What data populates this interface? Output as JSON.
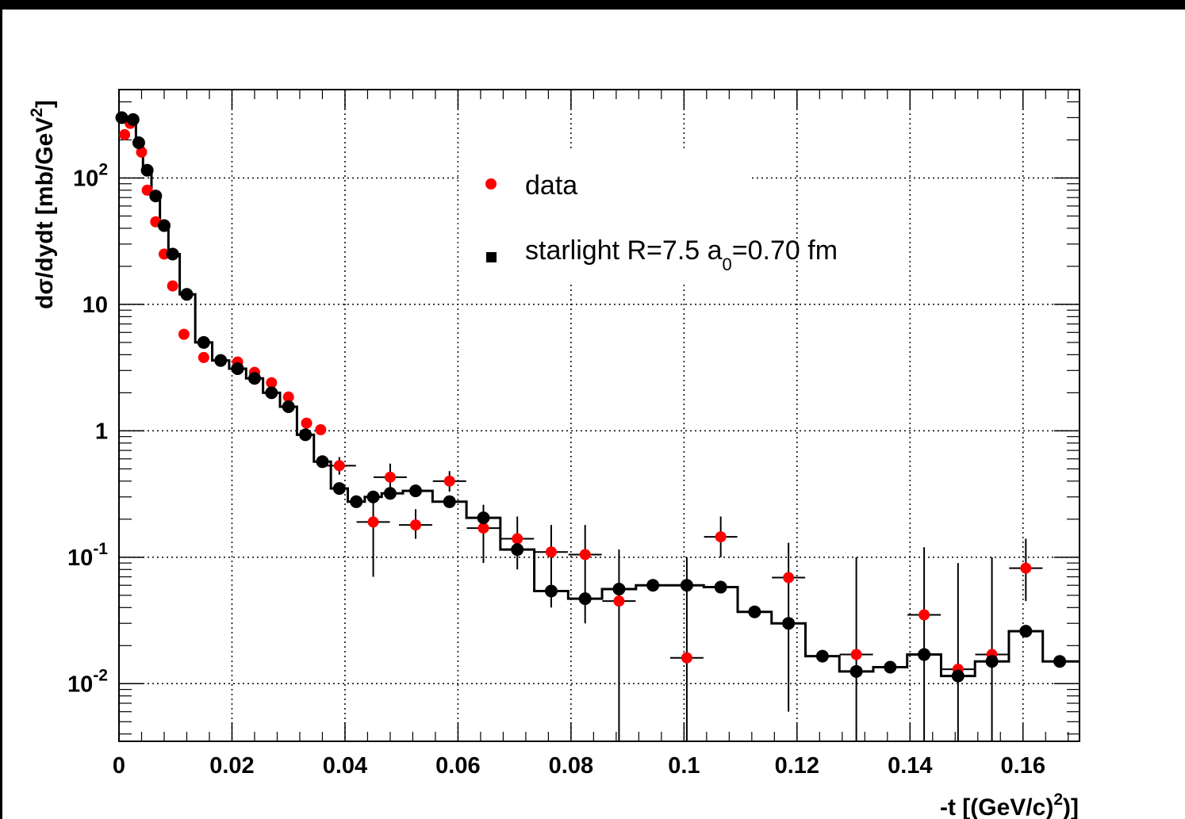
{
  "chart_data": {
    "type": "scatter",
    "xlabel": "-t [(GeV/c)²)]",
    "ylabel": "dσ/dydt [mb/GeV²]",
    "xlim": [
      0,
      0.17
    ],
    "ylim": [
      0.0035,
      500
    ],
    "log_y": true,
    "grid": true,
    "legend_position": "top-center",
    "x_ticks": [
      "0",
      "0.02",
      "0.04",
      "0.06",
      "0.08",
      "0.1",
      "0.12",
      "0.14",
      "0.16"
    ],
    "y_ticks": [
      {
        "value": 100,
        "base": "10",
        "exp": "2"
      },
      {
        "value": 10,
        "base": "10",
        "exp": ""
      },
      {
        "value": 1,
        "base": "1",
        "exp": ""
      },
      {
        "value": 0.1,
        "base": "10",
        "exp": "-1"
      },
      {
        "value": 0.01,
        "base": "10",
        "exp": "-2"
      }
    ],
    "colors": {
      "data": "#ff0000",
      "starlight": "#000000"
    },
    "series": [
      {
        "name": "data",
        "x": [
          0.001,
          0.002,
          0.004,
          0.005,
          0.0065,
          0.008,
          0.0095,
          0.0115,
          0.015,
          0.021,
          0.024,
          0.027,
          0.03,
          0.0332,
          0.0357,
          0.039,
          0.045,
          0.048,
          0.0525,
          0.0585,
          0.0645,
          0.0705,
          0.0765,
          0.0825,
          0.0885,
          0.1005,
          0.1065,
          0.1185,
          0.1305,
          0.1425,
          0.1485,
          0.1545,
          0.1605
        ],
        "y": [
          220,
          270,
          160,
          80,
          45,
          25,
          14,
          5.8,
          3.8,
          3.5,
          2.9,
          2.4,
          1.85,
          1.15,
          1.02,
          0.53,
          0.19,
          0.43,
          0.18,
          0.4,
          0.17,
          0.14,
          0.11,
          0.105,
          0.045,
          0.016,
          0.145,
          0.069,
          0.017,
          0.035,
          0.013,
          0.017,
          0.082
        ],
        "ylo": [
          0,
          0,
          0,
          0,
          0,
          0,
          0,
          0,
          0,
          0,
          0,
          0,
          0,
          0,
          0,
          0.45,
          0.07,
          0.34,
          0.14,
          0.33,
          0.09,
          0.08,
          0.04,
          0.03,
          0.0035,
          0.0035,
          0.1,
          0.006,
          0.0035,
          0.0035,
          0.0035,
          0.0035,
          0.045
        ],
        "yhi": [
          0,
          0,
          0,
          0,
          0,
          0,
          0,
          0,
          0,
          0,
          0,
          0,
          0,
          0,
          0,
          0.62,
          0.3,
          0.55,
          0.24,
          0.48,
          0.26,
          0.21,
          0.18,
          0.18,
          0.115,
          0.1,
          0.21,
          0.13,
          0.1,
          0.12,
          0.09,
          0.1,
          0.14
        ]
      },
      {
        "name": "starlight R=7.5 a₀=0.70 fm",
        "x": [
          0.0005,
          0.0025,
          0.0035,
          0.005,
          0.0065,
          0.008,
          0.0095,
          0.012,
          0.015,
          0.018,
          0.021,
          0.024,
          0.027,
          0.03,
          0.033,
          0.036,
          0.039,
          0.042,
          0.045,
          0.048,
          0.0525,
          0.0585,
          0.0645,
          0.0705,
          0.0765,
          0.0825,
          0.0885,
          0.0945,
          0.1005,
          0.1065,
          0.1125,
          0.1185,
          0.1245,
          0.1305,
          0.1365,
          0.1425,
          0.1485,
          0.1545,
          0.1605,
          0.1665
        ],
        "y": [
          300,
          290,
          190,
          115,
          72,
          42,
          25,
          12,
          5.0,
          3.6,
          3.1,
          2.6,
          2.0,
          1.55,
          0.93,
          0.57,
          0.35,
          0.275,
          0.3,
          0.32,
          0.335,
          0.275,
          0.205,
          0.115,
          0.054,
          0.047,
          0.056,
          0.06,
          0.06,
          0.058,
          0.037,
          0.03,
          0.0165,
          0.0125,
          0.0135,
          0.017,
          0.0115,
          0.015,
          0.026,
          0.015
        ]
      }
    ]
  }
}
